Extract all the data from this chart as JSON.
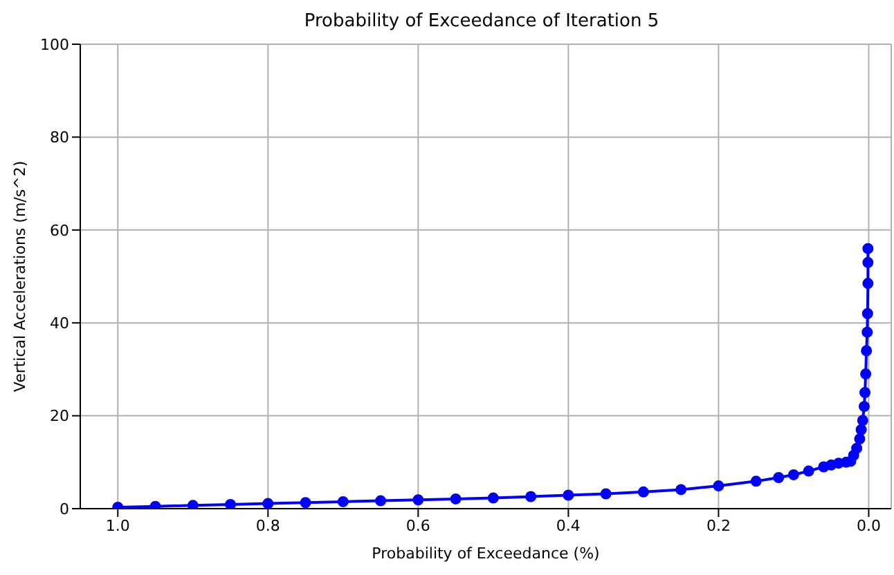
{
  "chart_data": {
    "type": "line",
    "title": "Probability of Exceedance of Iteration 5",
    "xlabel": "Probability of Exceedance (%)",
    "ylabel": "Vertical Accelerations (m/s^2)",
    "x": [
      1.0,
      0.95,
      0.9,
      0.85,
      0.8,
      0.75,
      0.7,
      0.65,
      0.6,
      0.55,
      0.5,
      0.45,
      0.4,
      0.35,
      0.3,
      0.25,
      0.2,
      0.15,
      0.12,
      0.1,
      0.08,
      0.06,
      0.05,
      0.04,
      0.03,
      0.024,
      0.02,
      0.016,
      0.012,
      0.01,
      0.008,
      0.006,
      0.005,
      0.004,
      0.003,
      0.002,
      0.0015,
      0.001,
      0.001,
      0.001
    ],
    "series": [
      {
        "color": "#0000ff",
        "values": [
          0.3,
          0.5,
          0.7,
          0.9,
          1.1,
          1.3,
          1.5,
          1.7,
          1.9,
          2.1,
          2.3,
          2.6,
          2.9,
          3.2,
          3.6,
          4.1,
          4.9,
          5.9,
          6.7,
          7.3,
          8.1,
          9.0,
          9.4,
          9.8,
          10.0,
          10.2,
          11.5,
          13,
          15,
          17,
          19,
          22,
          25,
          29,
          34,
          38,
          42,
          48.5,
          53,
          56
        ]
      }
    ],
    "xlim": [
      1.05,
      -0.03
    ],
    "xticks": [
      {
        "value": 1.0,
        "label": "1.0"
      },
      {
        "value": 0.8,
        "label": "0.8"
      },
      {
        "value": 0.6,
        "label": "0.6"
      },
      {
        "value": 0.4,
        "label": "0.4"
      },
      {
        "value": 0.2,
        "label": "0.2"
      },
      {
        "value": 0.0,
        "label": "0.0"
      }
    ],
    "ylim": [
      0,
      100
    ],
    "yticks": [
      0,
      20,
      40,
      60,
      80,
      100
    ],
    "grid": true,
    "marker": "circle",
    "line_style": "solid"
  }
}
